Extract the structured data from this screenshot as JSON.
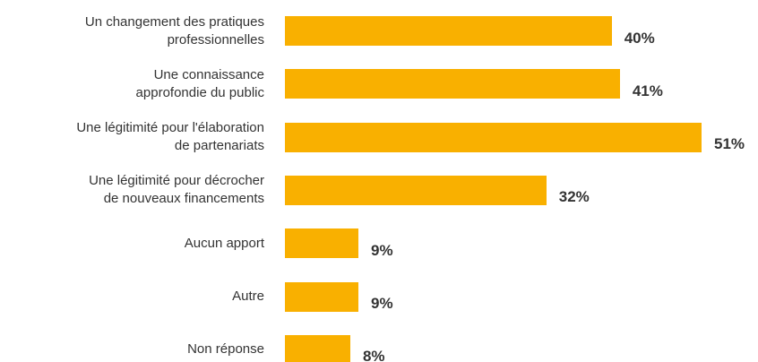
{
  "chart_data": {
    "type": "bar",
    "orientation": "horizontal",
    "categories": [
      "Un changement des pratiques\nprofessionnelles",
      "Une connaissance\napprofondie du public",
      "Une légitimité pour l'élaboration\nde partenariats",
      "Une légitimité pour décrocher\nde nouveaux financements",
      "Aucun apport",
      "Autre",
      "Non réponse"
    ],
    "values": [
      40,
      41,
      51,
      32,
      9,
      9,
      8
    ],
    "value_labels": [
      "40%",
      "41%",
      "51%",
      "32%",
      "9%",
      "9%",
      "8%"
    ],
    "color": "#f9b000"
  }
}
